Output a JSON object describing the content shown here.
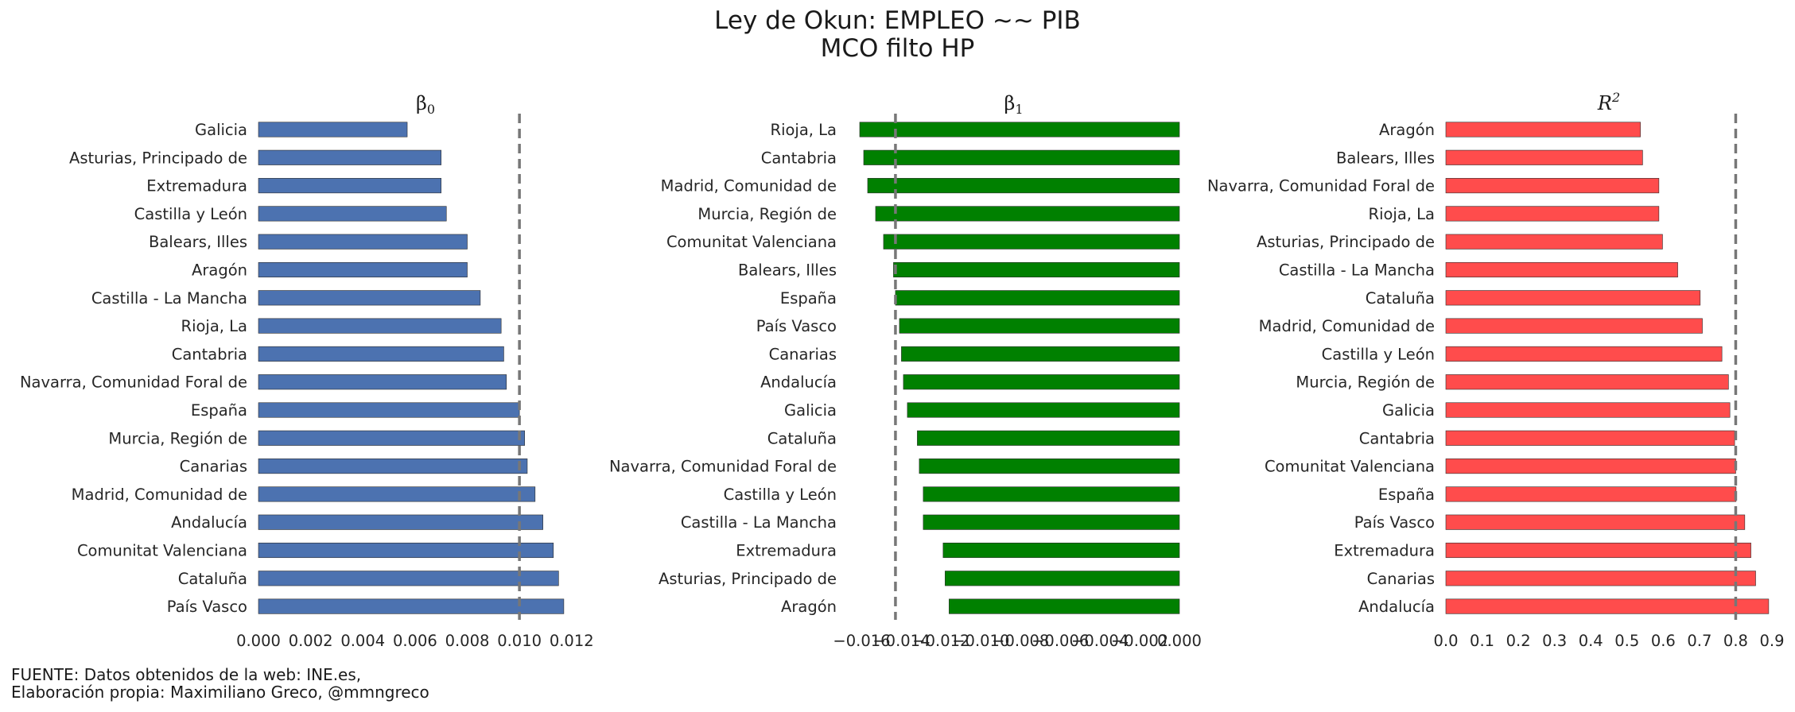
{
  "figure": {
    "title_line1": "Ley de Okun: EMPLEO ~~ PIB",
    "title_line2": "MCO filto HP",
    "footer_line1": "FUENTE: Datos obtenidos de la web: INE.es,",
    "footer_line2": "Elaboración propia: Maximiliano Greco, @mmngreco"
  },
  "chart_data": [
    {
      "type": "bar",
      "orientation": "horizontal",
      "title": "β",
      "title_sub": "0",
      "color": "#4c72b0",
      "categories": [
        "Galicia",
        "Asturias, Principado de",
        "Extremadura",
        "Castilla y León",
        "Balears, Illes",
        "Aragón",
        "Castilla - La Mancha",
        "Rioja, La",
        "Cantabria",
        "Navarra, Comunidad Foral de",
        "España",
        "Murcia, Región de",
        "Canarias",
        "Madrid, Comunidad de",
        "Andalucía",
        "Comunitat Valenciana",
        "Cataluña",
        "País Vasco"
      ],
      "values": [
        0.0057,
        0.007,
        0.007,
        0.0072,
        0.008,
        0.008,
        0.0085,
        0.0093,
        0.0094,
        0.0095,
        0.01,
        0.0102,
        0.0103,
        0.0106,
        0.0109,
        0.0113,
        0.0115,
        0.0117
      ],
      "reference_line": 0.01,
      "xlim": [
        0.0,
        0.0128
      ],
      "xticks": [
        0.0,
        0.002,
        0.004,
        0.006,
        0.008,
        0.01,
        0.012
      ],
      "xtick_labels": [
        "0.000",
        "0.002",
        "0.004",
        "0.006",
        "0.008",
        "0.010",
        "0.012"
      ]
    },
    {
      "type": "bar",
      "orientation": "horizontal",
      "title": "β",
      "title_sub": "1",
      "color": "#008000",
      "categories": [
        "Rioja, La",
        "Cantabria",
        "Madrid, Comunidad de",
        "Murcia, Región de",
        "Comunitat Valenciana",
        "Balears, Illes",
        "España",
        "País Vasco",
        "Canarias",
        "Andalucía",
        "Galicia",
        "Cataluña",
        "Navarra, Comunidad Foral de",
        "Castilla y León",
        "Castilla - La Mancha",
        "Extremadura",
        "Asturias, Principado de",
        "Aragón"
      ],
      "values": [
        -0.0161,
        -0.0159,
        -0.0157,
        -0.0153,
        -0.0149,
        -0.0144,
        -0.0143,
        -0.0141,
        -0.014,
        -0.0139,
        -0.0137,
        -0.0132,
        -0.0131,
        -0.0129,
        -0.0129,
        -0.0119,
        -0.0118,
        -0.0116
      ],
      "reference_line": -0.0143,
      "xlim": [
        -0.0167,
        0.0
      ],
      "xticks": [
        -0.016,
        -0.014,
        -0.012,
        -0.01,
        -0.008,
        -0.006,
        -0.004,
        -0.002,
        0.0
      ],
      "xtick_labels": [
        "−0.016",
        "−0.014",
        "−0.012",
        "−0.010",
        "−0.008",
        "−0.006",
        "−0.004",
        "−0.002",
        "0.000"
      ]
    },
    {
      "type": "bar",
      "orientation": "horizontal",
      "title": "R",
      "title_sup": "2",
      "color": "#ff4c4c",
      "categories": [
        "Aragón",
        "Balears, Illes",
        "Navarra, Comunidad Foral de",
        "Rioja, La",
        "Asturias, Principado de",
        "Castilla - La Mancha",
        "Cataluña",
        "Madrid, Comunidad de",
        "Castilla y León",
        "Murcia, Región de",
        "Galicia",
        "Cantabria",
        "Comunitat Valenciana",
        "España",
        "País Vasco",
        "Extremadura",
        "Canarias",
        "Andalucía"
      ],
      "values": [
        0.537,
        0.543,
        0.588,
        0.588,
        0.598,
        0.64,
        0.702,
        0.708,
        0.762,
        0.78,
        0.784,
        0.797,
        0.8,
        0.801,
        0.825,
        0.842,
        0.855,
        0.891
      ],
      "reference_line": 0.8,
      "xlim": [
        0.0,
        0.9
      ],
      "xticks": [
        0.0,
        0.1,
        0.2,
        0.3,
        0.4,
        0.5,
        0.6,
        0.7,
        0.8,
        0.9
      ],
      "xtick_labels": [
        "0.0",
        "0.1",
        "0.2",
        "0.3",
        "0.4",
        "0.5",
        "0.6",
        "0.7",
        "0.8",
        "0.9"
      ]
    }
  ]
}
